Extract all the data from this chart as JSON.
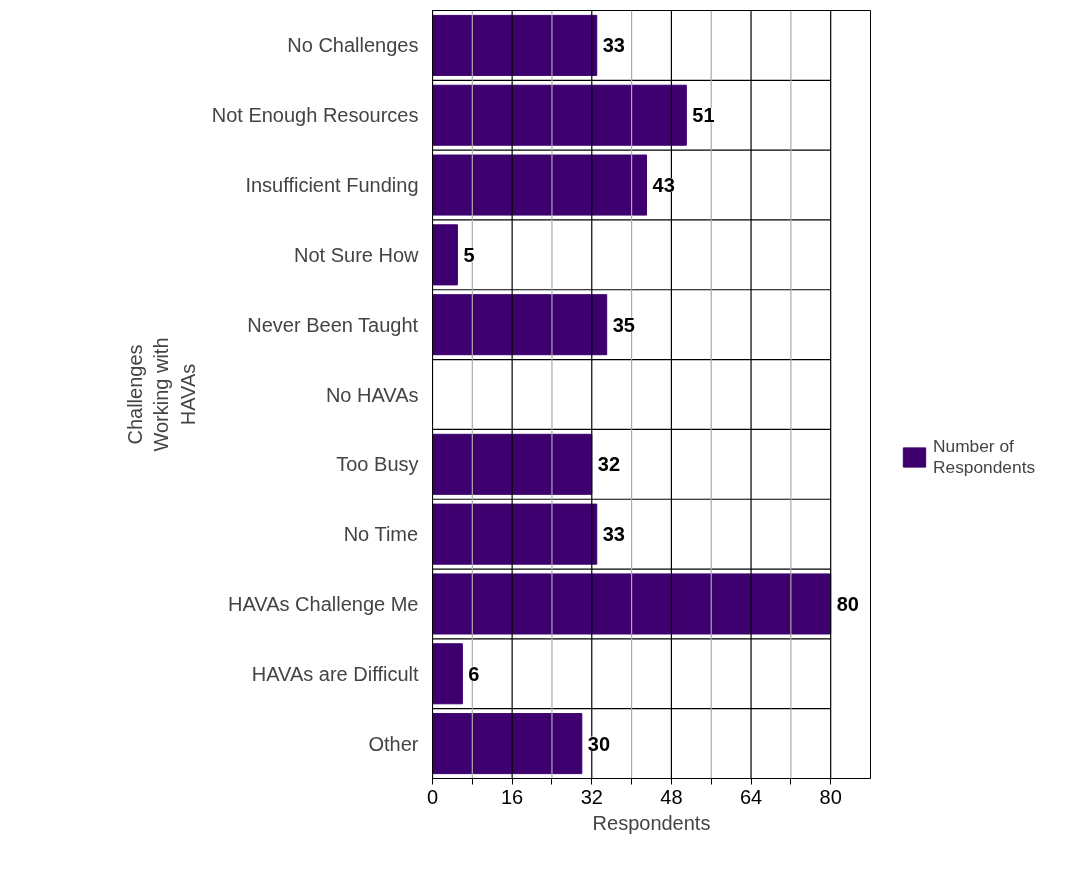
{
  "chart_data": {
    "type": "bar",
    "orientation": "horizontal",
    "xlabel": "Respondents",
    "ylabel": "Challenges Working with HAVAs",
    "categories": [
      "No Challenges",
      "Not Enough Resources",
      "Insufficient Funding",
      "Not Sure How",
      "Never Been Taught",
      "No HAVAs",
      "Too Busy",
      "No Time",
      "HAVAs Challenge Me",
      "HAVAs are Difficult",
      "Other"
    ],
    "series": [
      {
        "name": "Number of Respondents",
        "color": "#3d006e",
        "values": [
          33,
          51,
          43,
          5,
          35,
          null,
          32,
          33,
          80,
          6,
          30
        ]
      }
    ],
    "xlim": [
      0,
      80
    ],
    "xticks": [
      0,
      {
        "value": 8,
        "label": null
      },
      16,
      {
        "value": 24,
        "label": null
      },
      32,
      {
        "value": 40,
        "label": null
      },
      48,
      {
        "value": 56,
        "label": null
      },
      64,
      {
        "value": 72,
        "label": null
      },
      80
    ],
    "grid": true,
    "legend": "right",
    "data_labels": true
  }
}
